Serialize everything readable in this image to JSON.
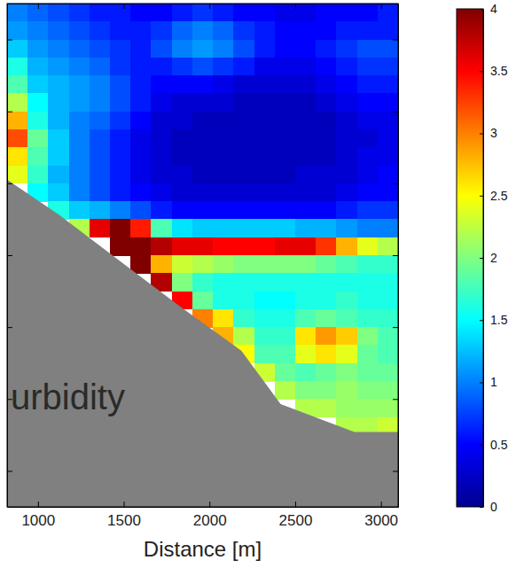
{
  "chart_data": {
    "type": "heatmap",
    "xlabel": "Distance [m]",
    "xlim": [
      820,
      3100
    ],
    "xticks": [
      1000,
      1500,
      2000,
      2500,
      3000
    ],
    "ylim": [
      0,
      70
    ],
    "yticks": [
      5,
      15,
      25,
      35,
      45,
      55,
      65
    ],
    "tick_labels": "x",
    "x": [
      880,
      1000,
      1120,
      1240,
      1360,
      1480,
      1600,
      1720,
      1840,
      1960,
      2080,
      2200,
      2320,
      2440,
      2560,
      2680,
      2800,
      2920,
      3040
    ],
    "y": [
      1.25,
      3.75,
      6.25,
      8.75,
      11.25,
      13.75,
      16.25,
      18.75,
      21.25,
      23.75,
      26.25,
      28.75,
      31.25,
      33.75,
      36.25,
      38.75,
      41.25,
      43.75,
      46.25,
      48.75,
      51.25,
      53.75,
      56.25,
      58.75
    ],
    "z": [
      [
        1.0,
        0.9,
        0.8,
        0.7,
        0.6,
        0.6,
        0.5,
        0.5,
        0.6,
        0.7,
        0.6,
        0.5,
        0.5,
        0.4,
        0.4,
        0.5,
        0.5,
        0.5,
        0.6
      ],
      [
        1.1,
        1.0,
        0.9,
        0.8,
        0.7,
        0.6,
        0.6,
        0.7,
        0.9,
        1.0,
        0.9,
        0.7,
        0.6,
        0.5,
        0.5,
        0.5,
        0.6,
        0.6,
        0.6
      ],
      [
        1.3,
        1.1,
        1.0,
        0.9,
        0.8,
        0.7,
        0.6,
        0.8,
        1.0,
        1.1,
        1.0,
        0.8,
        0.6,
        0.5,
        0.5,
        0.6,
        0.7,
        0.8,
        0.8
      ],
      [
        1.6,
        1.2,
        1.1,
        1.0,
        0.9,
        0.7,
        0.6,
        0.6,
        0.7,
        0.8,
        0.7,
        0.6,
        0.4,
        0.4,
        0.4,
        0.5,
        0.6,
        0.7,
        0.7
      ],
      [
        1.8,
        1.3,
        1.2,
        1.1,
        1.0,
        0.8,
        0.6,
        0.5,
        0.5,
        0.5,
        0.4,
        0.3,
        0.3,
        0.3,
        0.3,
        0.4,
        0.5,
        0.6,
        0.6
      ],
      [
        2.2,
        1.5,
        1.2,
        1.1,
        1.0,
        0.8,
        0.6,
        0.4,
        0.3,
        0.3,
        0.3,
        0.2,
        0.2,
        0.2,
        0.2,
        0.3,
        0.4,
        0.5,
        0.5
      ],
      [
        2.8,
        1.6,
        1.2,
        1.0,
        0.9,
        0.7,
        0.5,
        0.3,
        0.3,
        0.2,
        0.2,
        0.2,
        0.2,
        0.2,
        0.2,
        0.2,
        0.3,
        0.4,
        0.4
      ],
      [
        3.2,
        1.9,
        1.3,
        1.0,
        0.8,
        0.6,
        0.4,
        0.3,
        0.2,
        0.2,
        0.2,
        0.2,
        0.2,
        0.2,
        0.2,
        0.2,
        0.3,
        0.3,
        0.4
      ],
      [
        2.6,
        1.8,
        1.3,
        1.0,
        0.8,
        0.6,
        0.4,
        0.3,
        0.2,
        0.2,
        0.2,
        0.2,
        0.2,
        0.2,
        0.2,
        0.2,
        0.3,
        0.4,
        0.4
      ],
      [
        2.4,
        1.7,
        1.2,
        1.0,
        0.8,
        0.6,
        0.4,
        0.3,
        0.3,
        0.2,
        0.2,
        0.2,
        0.2,
        0.2,
        0.3,
        0.3,
        0.3,
        0.4,
        0.5
      ],
      [
        null,
        1.5,
        1.3,
        1.0,
        0.8,
        0.6,
        0.5,
        0.4,
        0.3,
        0.3,
        0.3,
        0.3,
        0.3,
        0.3,
        0.3,
        0.3,
        0.4,
        0.5,
        0.5
      ],
      [
        null,
        null,
        1.6,
        1.3,
        1.2,
        1.0,
        0.8,
        0.6,
        0.5,
        0.5,
        0.5,
        0.5,
        0.5,
        0.5,
        0.5,
        0.5,
        0.6,
        0.7,
        0.7
      ],
      [
        null,
        null,
        null,
        2.2,
        3.6,
        4.0,
        3.4,
        1.8,
        1.4,
        1.3,
        1.3,
        1.3,
        1.3,
        1.3,
        1.2,
        1.2,
        1.1,
        1.0,
        1.0
      ],
      [
        null,
        null,
        null,
        null,
        null,
        4.0,
        4.0,
        3.8,
        3.6,
        3.6,
        3.5,
        3.5,
        3.5,
        3.6,
        3.6,
        3.3,
        2.8,
        2.4,
        2.2
      ],
      [
        null,
        null,
        null,
        null,
        null,
        null,
        4.0,
        2.8,
        2.3,
        2.2,
        2.1,
        2.0,
        2.0,
        2.0,
        2.0,
        1.9,
        1.8,
        1.7,
        1.7
      ],
      [
        null,
        null,
        null,
        null,
        null,
        null,
        null,
        3.8,
        2.0,
        1.7,
        1.6,
        1.6,
        1.6,
        1.6,
        1.6,
        1.6,
        1.6,
        1.6,
        1.6
      ],
      [
        null,
        null,
        null,
        null,
        null,
        null,
        null,
        null,
        3.5,
        1.9,
        1.6,
        1.6,
        1.5,
        1.5,
        1.6,
        1.6,
        1.7,
        1.6,
        1.6
      ],
      [
        null,
        null,
        null,
        null,
        null,
        null,
        null,
        null,
        null,
        3.0,
        2.6,
        1.7,
        1.6,
        1.6,
        1.8,
        1.9,
        1.8,
        1.7,
        1.7
      ],
      [
        null,
        null,
        null,
        null,
        null,
        null,
        null,
        null,
        null,
        null,
        2.8,
        2.2,
        1.7,
        1.7,
        2.6,
        2.9,
        2.7,
        2.0,
        1.8
      ],
      [
        null,
        null,
        null,
        null,
        null,
        null,
        null,
        null,
        null,
        null,
        null,
        2.5,
        1.8,
        1.8,
        2.4,
        2.6,
        2.4,
        1.9,
        1.8
      ],
      [
        null,
        null,
        null,
        null,
        null,
        null,
        null,
        null,
        null,
        null,
        null,
        null,
        2.3,
        1.9,
        1.8,
        1.9,
        2.0,
        1.9,
        1.9
      ],
      [
        null,
        null,
        null,
        null,
        null,
        null,
        null,
        null,
        null,
        null,
        null,
        null,
        null,
        2.2,
        2.0,
        2.0,
        2.1,
        2.0,
        2.0
      ],
      [
        null,
        null,
        null,
        null,
        null,
        null,
        null,
        null,
        null,
        null,
        null,
        null,
        null,
        null,
        2.2,
        2.2,
        2.1,
        2.1,
        2.1
      ],
      [
        null,
        null,
        null,
        null,
        null,
        null,
        null,
        null,
        null,
        null,
        null,
        null,
        null,
        null,
        null,
        null,
        2.2,
        2.2,
        2.3
      ]
    ],
    "colorbar": {
      "range": [
        0,
        4
      ],
      "ticks": [
        0,
        0.5,
        1,
        1.5,
        2,
        2.5,
        3,
        3.5,
        4
      ]
    },
    "bottom": {
      "x": [
        820,
        1124,
        1428,
        1833,
        2187,
        2415,
        2845,
        3100
      ],
      "y": [
        24.5,
        29.4,
        34.9,
        42.2,
        48.3,
        55.7,
        59.6,
        59.6
      ]
    },
    "annotations": [
      "urbidity"
    ]
  }
}
